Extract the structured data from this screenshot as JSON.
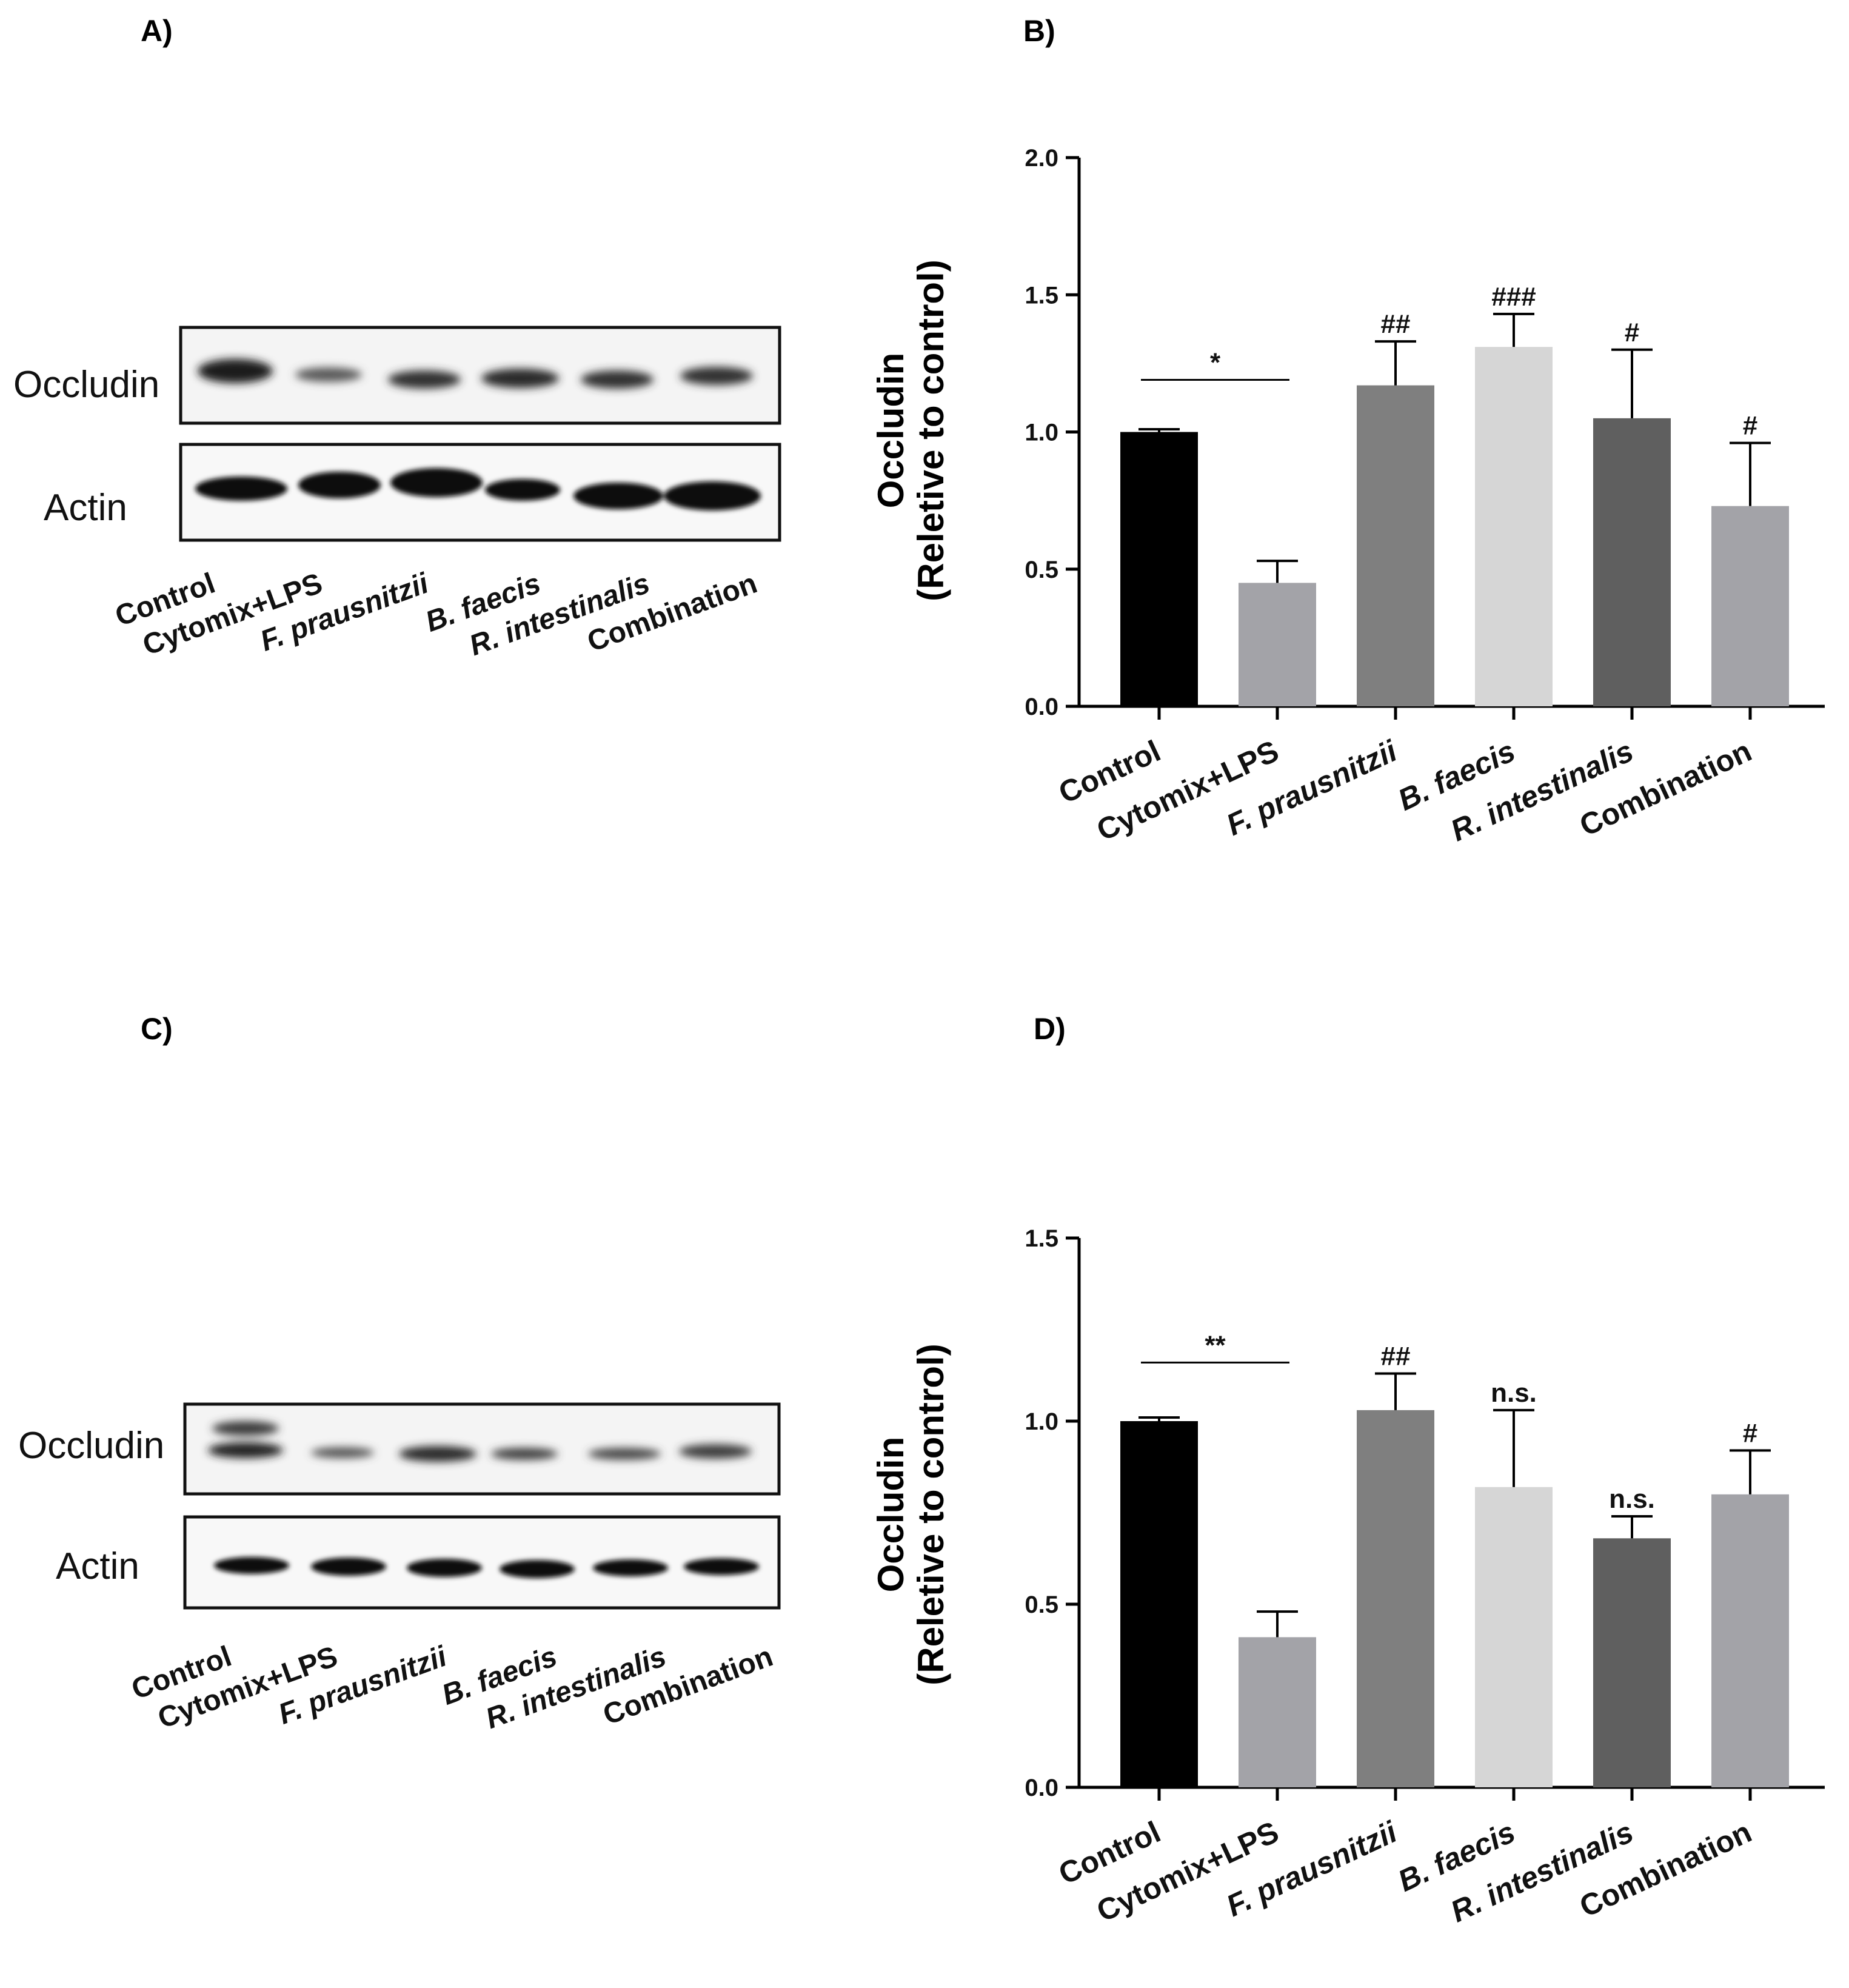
{
  "panels": [
    {
      "id": "A",
      "label": "A)",
      "type": "blot",
      "row_labels": [
        "Occludin",
        "Actin"
      ],
      "lanes": [
        "Control",
        "Cytomix+LPS",
        "F. prausnitzii",
        "B. faecis",
        "R. intestinalis",
        "Combination"
      ],
      "italic_lanes": [
        false,
        false,
        true,
        true,
        true,
        false
      ]
    },
    {
      "id": "C",
      "label": "C)",
      "type": "blot",
      "row_labels": [
        "Occludin",
        "Actin"
      ],
      "lanes": [
        "Control",
        "Cytomix+LPS",
        "F. prausnitzii",
        "B. faecis",
        "R. intestinalis",
        "Combination"
      ],
      "italic_lanes": [
        false,
        false,
        true,
        true,
        true,
        false
      ]
    }
  ],
  "chart_data": [
    {
      "id": "B",
      "panel_label": "B)",
      "type": "bar",
      "categories": [
        "Control",
        "Cytomix+LPS",
        "F. prausnitzii",
        "B. faecis",
        "R. intestinalis",
        "Combination"
      ],
      "italic_categories": [
        false,
        false,
        true,
        true,
        true,
        false
      ],
      "values": [
        1.0,
        0.45,
        1.17,
        1.31,
        1.05,
        0.73
      ],
      "error_upper": [
        1.01,
        0.53,
        1.33,
        1.43,
        1.3,
        0.96
      ],
      "bar_colors": [
        "#000000",
        "#a3a3a8",
        "#7f7f7f",
        "#d6d6d6",
        "#5f5f5f",
        "#a3a3a8"
      ],
      "annotations": [
        "",
        "",
        "##",
        "###",
        "#",
        "#"
      ],
      "bracket": {
        "from": 0,
        "to": 1,
        "y": 1.19,
        "label": "*"
      },
      "ylabel": [
        "Occludin",
        "(Reletive to control)"
      ],
      "ylim": [
        0,
        2.0
      ],
      "yticks": [
        0.0,
        0.5,
        1.0,
        1.5,
        2.0
      ],
      "ytick_labels": [
        "0.0",
        "0.5",
        "1.0",
        "1.5",
        "2.0"
      ],
      "grid": false
    },
    {
      "id": "D",
      "panel_label": "D)",
      "type": "bar",
      "categories": [
        "Control",
        "Cytomix+LPS",
        "F. prausnitzii",
        "B. faecis",
        "R. intestinalis",
        "Combination"
      ],
      "italic_categories": [
        false,
        false,
        true,
        true,
        true,
        false
      ],
      "values": [
        1.0,
        0.41,
        1.03,
        0.82,
        0.68,
        0.8
      ],
      "error_upper": [
        1.01,
        0.48,
        1.13,
        1.03,
        0.74,
        0.92
      ],
      "bar_colors": [
        "#000000",
        "#a3a3a8",
        "#7f7f7f",
        "#d6d6d6",
        "#5f5f5f",
        "#a3a3a8"
      ],
      "annotations": [
        "",
        "",
        "##",
        "n.s.",
        "n.s.",
        "#"
      ],
      "bracket": {
        "from": 0,
        "to": 1,
        "y": 1.16,
        "label": "**"
      },
      "ylabel": [
        "Occludin",
        "(Reletive to control)"
      ],
      "ylim": [
        0,
        1.5
      ],
      "yticks": [
        0.0,
        0.5,
        1.0,
        1.5
      ],
      "ytick_labels": [
        "0.0",
        "0.5",
        "1.0",
        "1.5"
      ],
      "grid": false
    }
  ]
}
